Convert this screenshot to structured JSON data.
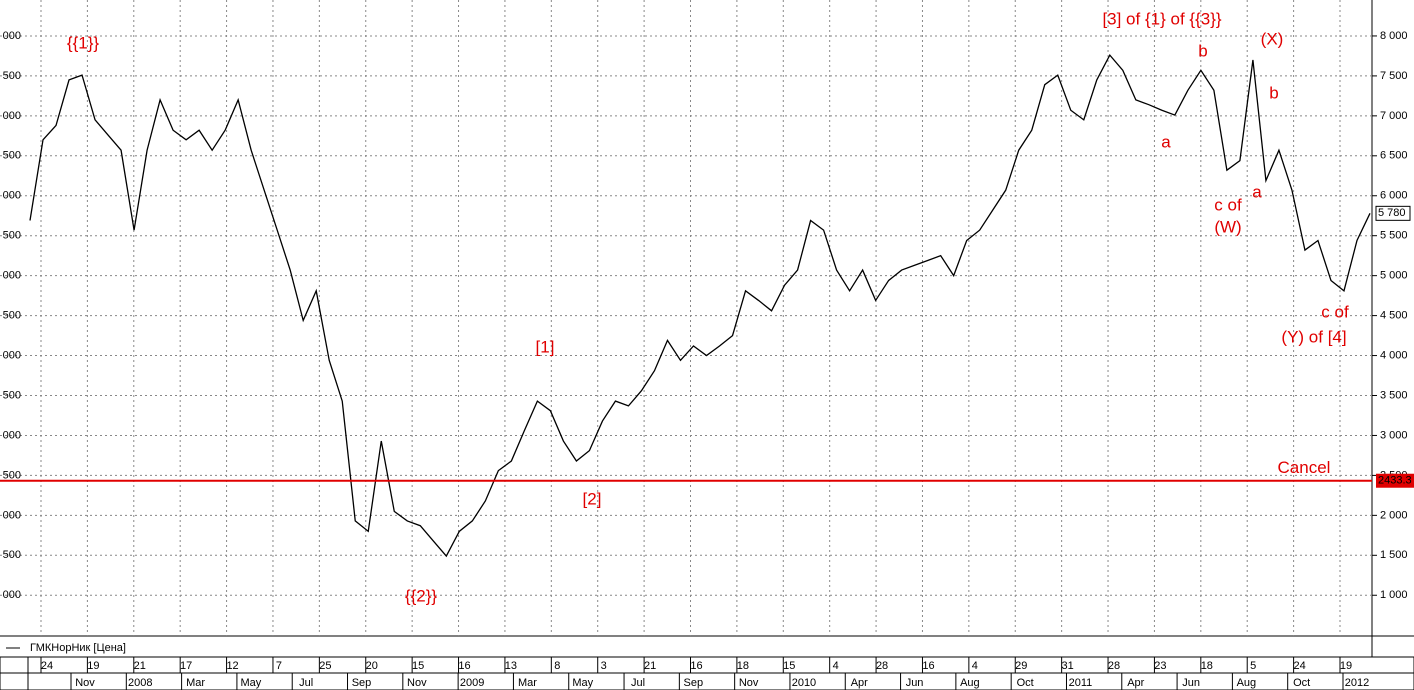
{
  "chart_data": {
    "type": "line",
    "series": [
      {
        "name": "ГМКНорНик [Цена]",
        "color": "#000000",
        "values": [
          5690,
          6700,
          6880,
          7450,
          7510,
          6950,
          6760,
          6570,
          5570,
          6570,
          7200,
          6820,
          6700,
          6820,
          6570,
          6820,
          7200,
          6570,
          6070,
          5570,
          5070,
          4440,
          4810,
          3940,
          3430,
          1930,
          1800,
          2930,
          2050,
          1930,
          1870,
          1680,
          1490,
          1800,
          1930,
          2180,
          2560,
          2680,
          3060,
          3430,
          3310,
          2930,
          2680,
          2810,
          3180,
          3430,
          3370,
          3560,
          3810,
          4190,
          3940,
          4120,
          4000,
          4120,
          4250,
          4810,
          4690,
          4560,
          4880,
          5070,
          5690,
          5570,
          5070,
          4810,
          5070,
          4690,
          4940,
          5070,
          5130,
          5190,
          5250,
          5000,
          5440,
          5570,
          5820,
          6070,
          6570,
          6820,
          7390,
          7510,
          7070,
          6950,
          7450,
          7760,
          7570,
          7200,
          7140,
          7070,
          7010,
          7320,
          7570,
          7320,
          6320,
          6440,
          7700,
          6190,
          6570,
          6070,
          5320,
          5440,
          4940,
          4810,
          5440,
          5780
        ]
      }
    ],
    "ylim": [
      490,
      8450
    ],
    "yticks": [
      {
        "value": 1000,
        "label": "1 000"
      },
      {
        "value": 1500,
        "label": "1 500"
      },
      {
        "value": 2000,
        "label": "2 000"
      },
      {
        "value": 2500,
        "label": "2 500"
      },
      {
        "value": 3000,
        "label": "3 000"
      },
      {
        "value": 3500,
        "label": "3 500"
      },
      {
        "value": 4000,
        "label": "4 000"
      },
      {
        "value": 4500,
        "label": "4 500"
      },
      {
        "value": 5000,
        "label": "5 000"
      },
      {
        "value": 5500,
        "label": "5 500"
      },
      {
        "value": 6000,
        "label": "6 000"
      },
      {
        "value": 6500,
        "label": "6 500"
      },
      {
        "value": 7000,
        "label": "7 000"
      },
      {
        "value": 7500,
        "label": "7 500"
      },
      {
        "value": 8000,
        "label": "8 000"
      }
    ],
    "x_day_labels": [
      "24",
      "19",
      "21",
      "17",
      "12",
      "7",
      "25",
      "20",
      "15",
      "16",
      "13",
      "8",
      "3",
      "21",
      "16",
      "18",
      "15",
      "4",
      "28",
      "16",
      "4",
      "29",
      "31",
      "28",
      "23",
      "18",
      "5",
      "24",
      "19"
    ],
    "x_month_labels": [
      "Nov",
      "2008",
      "Mar",
      "May",
      "Jul",
      "Sep",
      "Nov",
      "2009",
      "Mar",
      "May",
      "Jul",
      "Sep",
      "Nov",
      "2010",
      "Apr",
      "Jun",
      "Aug",
      "Oct",
      "2011",
      "Apr",
      "Jun",
      "Aug",
      "Oct",
      "2012"
    ],
    "grid": true,
    "cancel_level": {
      "value": 2433.3,
      "label": "2433.3",
      "text": "Cancel",
      "color": "#e00000"
    },
    "last_price": {
      "value": 5780,
      "label": "5 780"
    },
    "annotations": [
      "{{1}}",
      "[3] of {1} of {{3}}",
      "b",
      "(X)",
      "b",
      "a",
      "c of",
      "(W)",
      "a",
      "c of",
      "(Y) of [4]",
      "[1]",
      "[2]",
      "{{2}}"
    ]
  }
}
